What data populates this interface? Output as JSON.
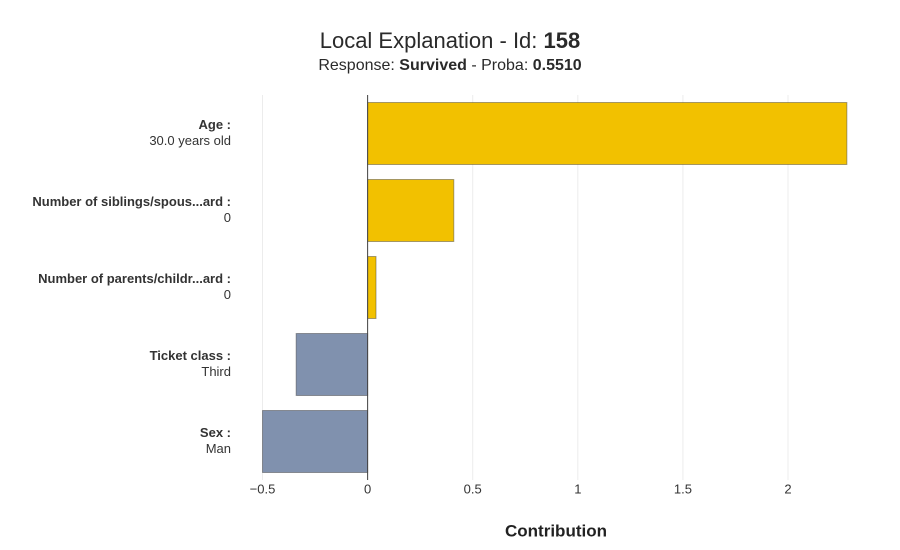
{
  "chart_data": {
    "type": "hbar",
    "title": {
      "text": "Local Explanation - Id:",
      "emphasis": "158"
    },
    "subtitle": {
      "label": "Response:",
      "response": "Survived",
      "proba_label": "- Proba:",
      "proba": "0.5510"
    },
    "categories": [
      "Age :",
      "Number of siblings/spous...ard :",
      "Number of parents/childr...ard :",
      "Ticket class :",
      "Sex :"
    ],
    "category_values": [
      "30.0 years old",
      "0",
      "0",
      "Third",
      "Man"
    ],
    "values": [
      2.28,
      0.41,
      0.04,
      -0.34,
      -0.5
    ],
    "colors": [
      "#f2c100",
      "#f2c100",
      "#f2c100",
      "#8091ae",
      "#8091ae"
    ],
    "xlim": [
      -0.55,
      2.39
    ],
    "xticks": [
      {
        "value": -0.5,
        "label": "−0.5"
      },
      0,
      0.5,
      1,
      1.5,
      2
    ],
    "xlabel": "Contribution",
    "grid": true
  }
}
